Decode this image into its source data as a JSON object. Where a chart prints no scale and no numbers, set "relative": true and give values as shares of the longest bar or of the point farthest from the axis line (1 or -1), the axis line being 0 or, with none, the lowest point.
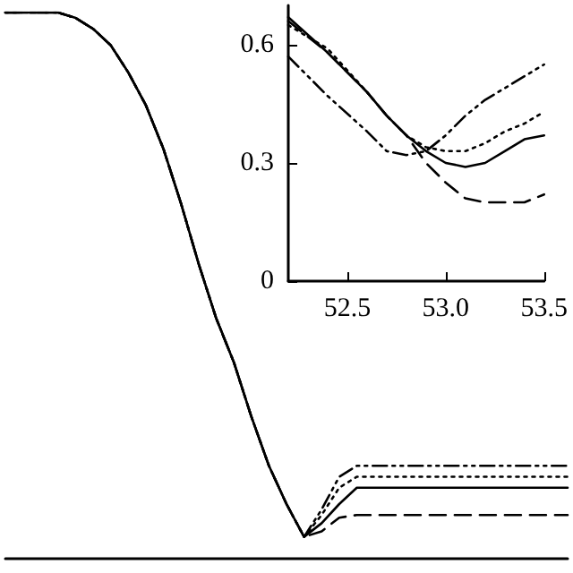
{
  "chart_data": [
    {
      "type": "line",
      "relative": true,
      "marker": "none",
      "categories": [
        null,
        null,
        null,
        null,
        null,
        null,
        null,
        null,
        null,
        null,
        null,
        null,
        null,
        null,
        null,
        null,
        null,
        null,
        null,
        null,
        null,
        null,
        null,
        null,
        null,
        null,
        null,
        null,
        null,
        null,
        null,
        null,
        null
      ],
      "series": [
        {
          "color": "#000000",
          "line_style": "solid",
          "values": [
            1,
            1,
            1,
            1,
            0.99,
            0.97,
            0.94,
            0.89,
            0.83,
            0.75,
            0.65,
            0.54,
            0.44,
            0.36,
            0.26,
            0.17,
            0.1,
            0.04,
            0.065,
            0.1,
            0.13,
            0.13,
            0.13,
            0.13,
            0.13,
            0.13,
            0.13,
            0.13,
            0.13,
            0.13,
            0.13,
            0.13,
            0.13
          ]
        },
        {
          "color": "#000000",
          "line_style": "dotted",
          "values": [
            1,
            1,
            1,
            1,
            0.99,
            0.97,
            0.94,
            0.89,
            0.83,
            0.75,
            0.65,
            0.54,
            0.44,
            0.36,
            0.26,
            0.17,
            0.1,
            0.04,
            0.08,
            0.13,
            0.15,
            0.15,
            0.15,
            0.15,
            0.15,
            0.15,
            0.15,
            0.15,
            0.15,
            0.15,
            0.15,
            0.15,
            0.15
          ]
        },
        {
          "color": "#000000",
          "line_style": "dashdot",
          "values": [
            1,
            1,
            1,
            1,
            0.99,
            0.97,
            0.94,
            0.89,
            0.83,
            0.75,
            0.65,
            0.54,
            0.44,
            0.36,
            0.26,
            0.17,
            0.1,
            0.04,
            0.09,
            0.15,
            0.17,
            0.17,
            0.17,
            0.17,
            0.17,
            0.17,
            0.17,
            0.17,
            0.17,
            0.17,
            0.17,
            0.17,
            0.17
          ]
        },
        {
          "color": "#000000",
          "line_style": "dashed",
          "values": [
            1,
            1,
            1,
            1,
            0.99,
            0.97,
            0.94,
            0.89,
            0.83,
            0.75,
            0.65,
            0.54,
            0.44,
            0.36,
            0.26,
            0.17,
            0.1,
            0.04,
            0.05,
            0.075,
            0.08,
            0.08,
            0.08,
            0.08,
            0.08,
            0.08,
            0.08,
            0.08,
            0.08,
            0.08,
            0.08,
            0.08,
            0.08
          ]
        }
      ]
    },
    {
      "type": "line",
      "marker": "none",
      "x": [
        52.2,
        52.4,
        52.6,
        52.7,
        52.8,
        52.9,
        53.0,
        53.1,
        53.2,
        53.3,
        53.4,
        53.5
      ],
      "xlim": [
        52.2,
        53.5
      ],
      "xticks": [
        {
          "value": 52.5,
          "label": "52.5"
        },
        {
          "value": 53.0,
          "label": "53.0"
        },
        {
          "value": 53.5,
          "label": "53.5"
        }
      ],
      "ylim": [
        0,
        0.7
      ],
      "yticks": [
        0,
        {
          "value": 0.3,
          "label": "0.3"
        },
        {
          "value": 0.6,
          "label": "0.6"
        }
      ],
      "series": [
        {
          "color": "#000000",
          "line_style": "solid",
          "values": [
            0.67,
            0.58,
            0.48,
            0.42,
            0.37,
            0.33,
            0.3,
            0.29,
            0.3,
            0.33,
            0.36,
            0.37
          ]
        },
        {
          "color": "#000000",
          "line_style": "dotted",
          "values": [
            0.65,
            0.59,
            0.48,
            0.42,
            0.37,
            0.34,
            0.33,
            0.33,
            0.35,
            0.38,
            0.4,
            0.43
          ]
        },
        {
          "color": "#000000",
          "line_style": "dashdot",
          "values": [
            0.57,
            0.47,
            0.38,
            0.33,
            0.32,
            0.33,
            0.37,
            0.42,
            0.46,
            0.49,
            0.52,
            0.55
          ]
        },
        {
          "color": "#000000",
          "line_style": "dashed",
          "values": [
            0.66,
            0.58,
            0.48,
            0.42,
            0.37,
            0.3,
            0.25,
            0.21,
            0.2,
            0.2,
            0.2,
            0.22
          ]
        }
      ]
    }
  ]
}
